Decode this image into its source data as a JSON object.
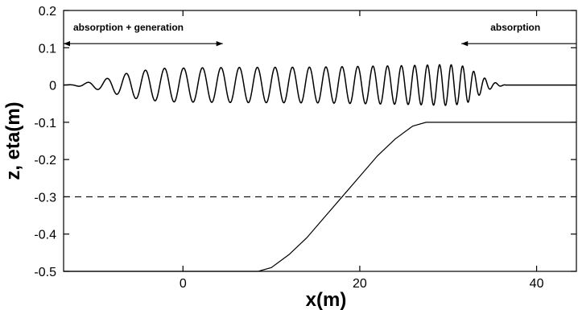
{
  "chart_data": {
    "type": "line",
    "xlabel": "x(m)",
    "ylabel": "z, eta(m)",
    "xlim": [
      -13.5,
      44.5
    ],
    "ylim": [
      -0.5,
      0.2
    ],
    "x_ticks": [
      0,
      20,
      40
    ],
    "x_tick_labels": [
      "0",
      "20",
      "40"
    ],
    "y_ticks": [
      0.2,
      0.1,
      0,
      -0.1,
      -0.2,
      -0.3,
      -0.4,
      -0.5
    ],
    "y_tick_labels": [
      "0.2",
      "0.1",
      "0",
      "-0.1",
      "-0.2",
      "-0.3",
      "-0.4",
      "-0.5"
    ],
    "grid": false,
    "series": [
      {
        "style": "solid",
        "description_ref": "bathymetry",
        "x": [
          -13.5,
          8.5,
          10,
          12,
          14,
          16,
          18,
          20,
          22,
          24,
          26,
          27.5,
          44.5
        ],
        "y": [
          -0.5,
          -0.5,
          -0.49,
          -0.455,
          -0.41,
          -0.355,
          -0.3,
          -0.245,
          -0.19,
          -0.145,
          -0.11,
          -0.1,
          -0.1
        ]
      },
      {
        "style": "dashed",
        "x": [
          -13.5,
          44.5
        ],
        "y": [
          -0.3,
          -0.3
        ]
      },
      {
        "style": "solid",
        "description_ref": "free-surface",
        "x_start": -13.5,
        "x_end": 44.5,
        "envelope_x": [
          -13.5,
          -12.5,
          -11,
          -9,
          -7,
          -5,
          -2,
          5,
          15,
          25,
          30,
          32,
          33,
          34,
          35,
          36.5,
          44.5
        ],
        "envelope_a": [
          0,
          0.001,
          0.006,
          0.015,
          0.028,
          0.038,
          0.045,
          0.047,
          0.048,
          0.052,
          0.055,
          0.05,
          0.035,
          0.02,
          0.008,
          0,
          0
        ],
        "wavelength_x": [
          -13.5,
          0,
          10,
          20,
          30,
          36.5
        ],
        "wavelength_v": [
          2.2,
          2.15,
          2.0,
          1.75,
          1.3,
          1.2
        ]
      }
    ],
    "annotations": [
      {
        "text": "absorption + generation",
        "arrow_from": -13.5,
        "arrow_to": 4.5,
        "y": 0.111,
        "direction": "both"
      },
      {
        "text": "absorption",
        "arrow_from": 31.5,
        "arrow_to": 44.5,
        "y": 0.111,
        "direction": "left"
      }
    ]
  }
}
